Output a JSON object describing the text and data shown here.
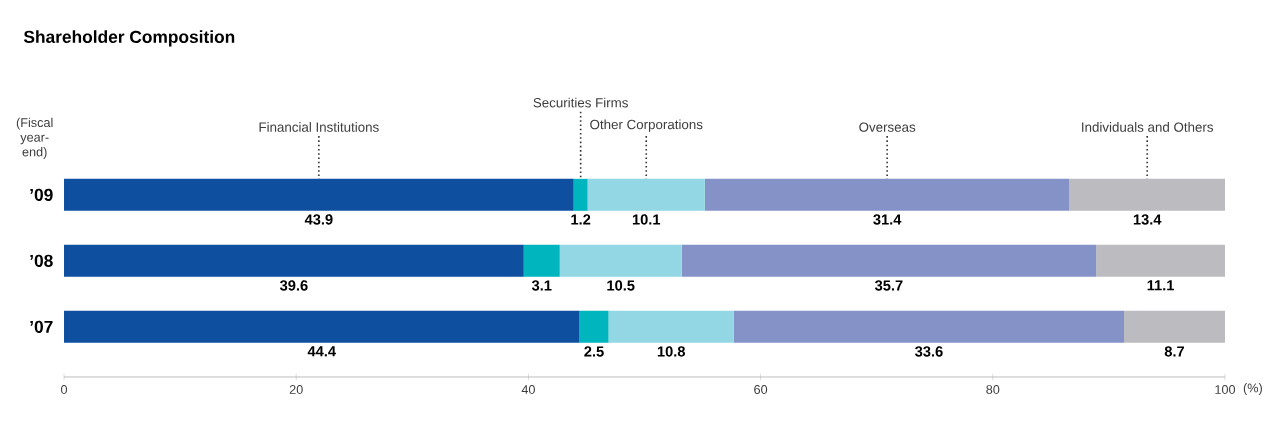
{
  "chart_data": {
    "type": "bar",
    "orientation": "horizontal",
    "stacked": true,
    "data_labels": true,
    "title": "Shareholder Composition",
    "xlabel": "(%)",
    "ylabel": "(Fiscal year-end)",
    "categories": [
      "’09",
      "’08",
      "’07"
    ],
    "series": [
      {
        "name": "Financial Institutions",
        "color": "#0e4fa0",
        "values": [
          43.9,
          39.6,
          44.4
        ]
      },
      {
        "name": "Securities Firms",
        "color": "#00b5bd",
        "values": [
          1.2,
          3.1,
          2.5
        ]
      },
      {
        "name": "Other Corporations",
        "color": "#92d7e3",
        "values": [
          10.1,
          10.5,
          10.8
        ]
      },
      {
        "name": "Overseas",
        "color": "#8592c8",
        "values": [
          31.4,
          35.7,
          33.6
        ]
      },
      {
        "name": "Individuals and Others",
        "color": "#bcbcc0",
        "values": [
          13.4,
          11.1,
          8.7
        ]
      }
    ],
    "xlim": [
      0,
      100
    ],
    "xticks": [
      0,
      20,
      40,
      60,
      80,
      100
    ]
  }
}
